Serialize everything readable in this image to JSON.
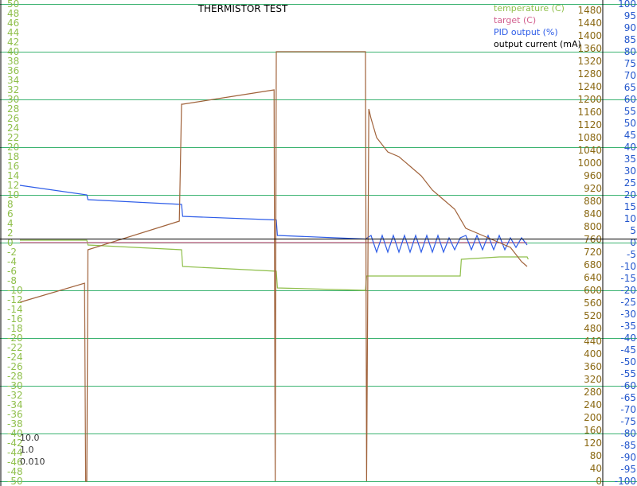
{
  "chart_data": {
    "type": "line",
    "title": "THERMISTOR TEST",
    "legend_position": "top-right",
    "grid": true,
    "colors": {
      "grid": "#3cb371",
      "left_axis": "#8fbf4a",
      "right_inner_axis": "#8b6914",
      "right_outer_axis": "#2255cc",
      "temperature": "#8fbf4a",
      "target": "#d25f8e",
      "pid": "#2d5ce8",
      "current": "#a0623a",
      "background": "#ffffff"
    },
    "axes": {
      "left": {
        "ylim": [
          -50,
          50
        ],
        "ticks": [
          "50",
          "48",
          "46",
          "44",
          "42",
          "40",
          "38",
          "36",
          "34",
          "32",
          "30",
          "28",
          "26",
          "24",
          "22",
          "20",
          "18",
          "16",
          "14",
          "12",
          "10",
          "8",
          "6",
          "4",
          "2",
          "0",
          "-2",
          "-4",
          "-6",
          "-8",
          "-10",
          "-12",
          "-14",
          "-16",
          "-18",
          "-20",
          "-22",
          "-24",
          "-26",
          "-28",
          "-30",
          "-32",
          "-34",
          "-36",
          "-38",
          "-40",
          "-42",
          "-44",
          "-46",
          "-48",
          "-50"
        ]
      },
      "right_inner": {
        "ylim": [
          0,
          1500
        ],
        "ticks": [
          "1480",
          "1440",
          "1400",
          "1360",
          "1320",
          "1280",
          "1240",
          "1200",
          "1160",
          "1120",
          "1080",
          "1040",
          "1000",
          "960",
          "920",
          "880",
          "840",
          "800",
          "760",
          "720",
          "680",
          "640",
          "600",
          "560",
          "520",
          "480",
          "440",
          "400",
          "360",
          "320",
          "280",
          "240",
          "200",
          "160",
          "120",
          "80",
          "40",
          "0"
        ]
      },
      "right_outer": {
        "ylim": [
          -100,
          100
        ],
        "ticks": [
          "100",
          "95",
          "90",
          "85",
          "80",
          "75",
          "70",
          "65",
          "60",
          "55",
          "50",
          "45",
          "40",
          "35",
          "30",
          "25",
          "20",
          "15",
          "10",
          "5",
          "0",
          "-5",
          "-10",
          "-15",
          "-20",
          "-25",
          "-30",
          "-35",
          "-40",
          "-45",
          "-50",
          "-55",
          "-60",
          "-65",
          "-70",
          "-75",
          "-80",
          "-85",
          "-90",
          "-95",
          "-100"
        ]
      }
    },
    "legend": [
      "temperature (C)",
      "target (C)",
      "PID output (%)",
      "output current (mA)"
    ],
    "pid_params": [
      "10.0",
      "1.0",
      "0.010"
    ],
    "x_range": [
      0,
      100
    ],
    "series": [
      {
        "name": "temperature (C)",
        "axis": "left",
        "x": [
          0,
          12,
          12.2,
          29,
          29.2,
          46,
          46.2,
          62,
          62.2,
          79,
          79.2,
          86,
          91,
          91.2
        ],
        "y": [
          0.5,
          0.5,
          -0.5,
          -1.5,
          -5,
          -6,
          -9.5,
          -10,
          -7,
          -7,
          -3.5,
          -3,
          -3,
          -3.5
        ]
      },
      {
        "name": "target (C)",
        "axis": "left",
        "x": [
          0,
          91
        ],
        "y": [
          0,
          0
        ]
      },
      {
        "name": "PID output (%)",
        "axis": "right_outer",
        "x": [
          0,
          12,
          12.2,
          29,
          29.2,
          46,
          46.2,
          62,
          63,
          64,
          65,
          66,
          67,
          68,
          69,
          70,
          71,
          72,
          73,
          74,
          75,
          76,
          77,
          78,
          79,
          80,
          81,
          82,
          83,
          84,
          85,
          86,
          87,
          88,
          89,
          90,
          91
        ],
        "y": [
          24,
          20,
          18,
          16,
          11,
          9.5,
          3,
          1.5,
          3,
          -4,
          3,
          -4,
          3,
          -4,
          3,
          -4,
          3,
          -4,
          3,
          -4,
          3,
          -4,
          2,
          -3,
          2,
          3,
          -3,
          3,
          -3,
          3,
          -3,
          3,
          -3,
          2,
          -2,
          2,
          -1
        ]
      },
      {
        "name": "output current (mA)",
        "axis": "left",
        "x": [
          0,
          11.6,
          11.8,
          12,
          12.2,
          28.6,
          29,
          29.2,
          45.6,
          45.8,
          46,
          46.2,
          62,
          62.2,
          62.6,
          63,
          64,
          66,
          68,
          70,
          72,
          74,
          76,
          78,
          80,
          82,
          84,
          86,
          88,
          90,
          91
        ],
        "y": [
          -12.5,
          -8.5,
          -50,
          -50,
          -1.5,
          4.5,
          29,
          29,
          32,
          -50,
          40,
          40,
          40,
          -50,
          28,
          26,
          22,
          19,
          18,
          16,
          14,
          11,
          9,
          7,
          3,
          2,
          1,
          0,
          -1,
          -4,
          -5
        ]
      }
    ]
  }
}
